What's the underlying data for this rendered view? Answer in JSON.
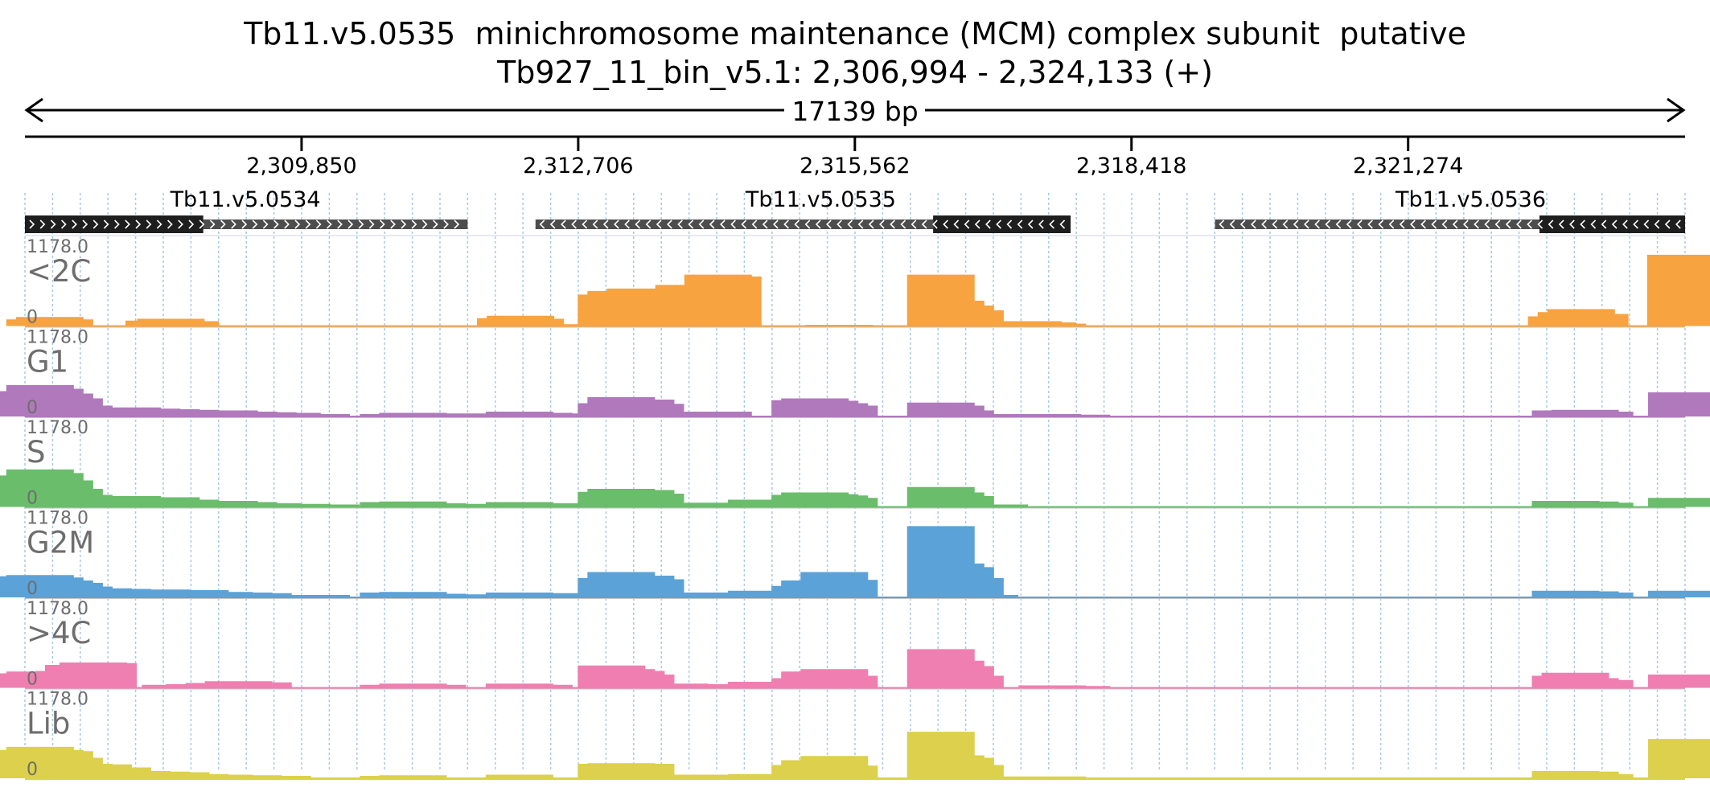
{
  "header": {
    "title": "Tb11.v5.0535  minichromosome maintenance (MCM) complex subunit  putative",
    "locus": "Tb927_11_bin_v5.1: 2,306,994 - 2,324,133 (+)"
  },
  "ruler": {
    "span_label": "17139 bp",
    "start": 2306994,
    "end": 2324133,
    "ticks": [
      {
        "pos": 2309850,
        "label": "2,309,850"
      },
      {
        "pos": 2312706,
        "label": "2,312,706"
      },
      {
        "pos": 2315562,
        "label": "2,315,562"
      },
      {
        "pos": 2318418,
        "label": "2,318,418"
      },
      {
        "pos": 2321274,
        "label": "2,321,274"
      }
    ]
  },
  "genes": [
    {
      "name": "Tb11.v5.0534",
      "strand": "+",
      "start": 2306994,
      "end": 2311564,
      "utr_start": 2308835,
      "utr_end": 2311564,
      "label_pos": 2309270
    },
    {
      "name": "Tb11.v5.0535",
      "strand": "-",
      "start": 2312265,
      "end": 2317790,
      "utr_start": 2312265,
      "utr_end": 2316370,
      "label_pos": 2315210
    },
    {
      "name": "Tb11.v5.0536",
      "strand": "-",
      "start": 2319280,
      "end": 2324133,
      "utr_start": 2319280,
      "utr_end": 2322630,
      "label_pos": 2321920
    }
  ],
  "tracks": {
    "ymax_label": "1178.0",
    "ymin_label": "0",
    "items": [
      {
        "name": "<2C",
        "color": "#f6a340"
      },
      {
        "name": "G1",
        "color": "#b079bc"
      },
      {
        "name": "S",
        "color": "#6abd6a"
      },
      {
        "name": "G2M",
        "color": "#5ba2d8"
      },
      {
        "name": ">4C",
        "color": "#ef7fb1"
      },
      {
        "name": "Lib",
        "color": "#dcd04c"
      }
    ]
  },
  "chart_data": {
    "type": "area",
    "x_unit": "bp",
    "xlim": [
      2306994,
      2324133
    ],
    "ylim": [
      0,
      1178.0
    ],
    "series": [
      {
        "name": "<2C",
        "points": [
          [
            2307150,
            110
          ],
          [
            2307250,
            150
          ],
          [
            2307350,
            110
          ],
          [
            2308380,
            90
          ],
          [
            2308500,
            120
          ],
          [
            2308650,
            80
          ],
          [
            2312010,
            130
          ],
          [
            2312110,
            170
          ],
          [
            2312210,
            120
          ],
          [
            2312480,
            20
          ],
          [
            2312680,
            30
          ],
          [
            2313050,
            520
          ],
          [
            2313150,
            580
          ],
          [
            2313250,
            500
          ],
          [
            2313350,
            620
          ],
          [
            2313450,
            560
          ],
          [
            2313650,
            200
          ],
          [
            2313750,
            600
          ],
          [
            2313850,
            680
          ],
          [
            2313950,
            620
          ],
          [
            2314050,
            500
          ],
          [
            2314150,
            850
          ],
          [
            2314250,
            820
          ],
          [
            2315400,
            20
          ],
          [
            2316450,
            850
          ],
          [
            2316550,
            420
          ],
          [
            2316650,
            340
          ],
          [
            2316750,
            260
          ],
          [
            2317350,
            80
          ],
          [
            2317500,
            60
          ],
          [
            2317600,
            40
          ],
          [
            2322860,
            160
          ],
          [
            2322960,
            230
          ],
          [
            2323060,
            280
          ],
          [
            2323200,
            200
          ],
          [
            2324090,
            1180
          ]
        ]
      },
      {
        "name": "G1",
        "points": [
          [
            2307050,
            420
          ],
          [
            2307150,
            520
          ],
          [
            2307250,
            460
          ],
          [
            2307350,
            380
          ],
          [
            2307450,
            300
          ],
          [
            2307550,
            180
          ],
          [
            2307700,
            150
          ],
          [
            2307850,
            120
          ],
          [
            2308050,
            150
          ],
          [
            2308250,
            130
          ],
          [
            2308450,
            120
          ],
          [
            2308650,
            110
          ],
          [
            2308850,
            90
          ],
          [
            2309050,
            100
          ],
          [
            2309250,
            80
          ],
          [
            2309450,
            70
          ],
          [
            2309700,
            60
          ],
          [
            2310000,
            40
          ],
          [
            2310800,
            40
          ],
          [
            2311000,
            60
          ],
          [
            2311300,
            40
          ],
          [
            2311600,
            50
          ],
          [
            2312100,
            80
          ],
          [
            2312300,
            60
          ],
          [
            2312600,
            50
          ],
          [
            2313050,
            220
          ],
          [
            2313150,
            320
          ],
          [
            2313250,
            250
          ],
          [
            2313350,
            280
          ],
          [
            2313450,
            210
          ],
          [
            2313700,
            60
          ],
          [
            2313900,
            70
          ],
          [
            2314150,
            80
          ],
          [
            2315050,
            270
          ],
          [
            2315150,
            300
          ],
          [
            2315250,
            260
          ],
          [
            2315350,
            220
          ],
          [
            2315450,
            180
          ],
          [
            2316450,
            230
          ],
          [
            2316550,
            180
          ],
          [
            2316650,
            100
          ],
          [
            2317150,
            40
          ],
          [
            2317550,
            40
          ],
          [
            2317850,
            30
          ],
          [
            2322900,
            100
          ],
          [
            2323100,
            110
          ],
          [
            2323250,
            80
          ],
          [
            2324100,
            400
          ]
        ]
      },
      {
        "name": "S",
        "points": [
          [
            2307050,
            520
          ],
          [
            2307150,
            620
          ],
          [
            2307250,
            560
          ],
          [
            2307350,
            440
          ],
          [
            2307450,
            300
          ],
          [
            2307550,
            200
          ],
          [
            2307700,
            130
          ],
          [
            2307850,
            170
          ],
          [
            2308050,
            180
          ],
          [
            2308250,
            140
          ],
          [
            2308450,
            160
          ],
          [
            2308650,
            120
          ],
          [
            2308850,
            90
          ],
          [
            2309050,
            100
          ],
          [
            2309250,
            80
          ],
          [
            2309500,
            60
          ],
          [
            2309800,
            50
          ],
          [
            2310100,
            40
          ],
          [
            2310800,
            80
          ],
          [
            2311000,
            90
          ],
          [
            2311200,
            60
          ],
          [
            2311500,
            50
          ],
          [
            2312100,
            80
          ],
          [
            2312300,
            60
          ],
          [
            2312600,
            60
          ],
          [
            2313050,
            250
          ],
          [
            2313150,
            300
          ],
          [
            2313250,
            260
          ],
          [
            2313350,
            280
          ],
          [
            2313450,
            220
          ],
          [
            2313700,
            60
          ],
          [
            2313900,
            60
          ],
          [
            2314150,
            70
          ],
          [
            2314300,
            50
          ],
          [
            2314600,
            120
          ],
          [
            2314800,
            110
          ],
          [
            2315050,
            200
          ],
          [
            2315150,
            240
          ],
          [
            2315250,
            210
          ],
          [
            2315350,
            190
          ],
          [
            2315450,
            150
          ],
          [
            2316450,
            330
          ],
          [
            2316550,
            240
          ],
          [
            2316650,
            180
          ],
          [
            2317000,
            40
          ],
          [
            2322900,
            100
          ],
          [
            2323100,
            90
          ],
          [
            2323250,
            70
          ],
          [
            2324100,
            150
          ]
        ]
      },
      {
        "name": "G2M",
        "points": [
          [
            2307050,
            350
          ],
          [
            2307150,
            370
          ],
          [
            2307250,
            330
          ],
          [
            2307350,
            280
          ],
          [
            2307450,
            240
          ],
          [
            2307550,
            180
          ],
          [
            2307750,
            150
          ],
          [
            2307950,
            140
          ],
          [
            2308150,
            120
          ],
          [
            2308350,
            130
          ],
          [
            2308550,
            110
          ],
          [
            2308750,
            120
          ],
          [
            2309000,
            90
          ],
          [
            2309200,
            80
          ],
          [
            2309400,
            70
          ],
          [
            2310000,
            40
          ],
          [
            2310800,
            80
          ],
          [
            2311000,
            90
          ],
          [
            2311200,
            60
          ],
          [
            2311500,
            50
          ],
          [
            2312100,
            80
          ],
          [
            2312300,
            60
          ],
          [
            2312500,
            70
          ],
          [
            2313050,
            320
          ],
          [
            2313150,
            420
          ],
          [
            2313250,
            330
          ],
          [
            2313350,
            360
          ],
          [
            2313450,
            300
          ],
          [
            2313700,
            80
          ],
          [
            2313900,
            80
          ],
          [
            2314150,
            80
          ],
          [
            2314600,
            110
          ],
          [
            2314800,
            100
          ],
          [
            2315050,
            190
          ],
          [
            2315150,
            280
          ],
          [
            2315250,
            250
          ],
          [
            2315350,
            420
          ],
          [
            2315450,
            290
          ],
          [
            2316450,
            1180
          ],
          [
            2316550,
            560
          ],
          [
            2316650,
            500
          ],
          [
            2316750,
            320
          ],
          [
            2316900,
            40
          ],
          [
            2322900,
            110
          ],
          [
            2323100,
            100
          ],
          [
            2323250,
            80
          ],
          [
            2324100,
            110
          ]
        ]
      },
      {
        "name": ">4C",
        "points": [
          [
            2307050,
            240
          ],
          [
            2307150,
            270
          ],
          [
            2307250,
            230
          ],
          [
            2307350,
            240
          ],
          [
            2307450,
            280
          ],
          [
            2307550,
            380
          ],
          [
            2307700,
            420
          ],
          [
            2307800,
            410
          ],
          [
            2308550,
            50
          ],
          [
            2308800,
            60
          ],
          [
            2309000,
            80
          ],
          [
            2309200,
            110
          ],
          [
            2309400,
            90
          ],
          [
            2310800,
            50
          ],
          [
            2311000,
            70
          ],
          [
            2311200,
            50
          ],
          [
            2312100,
            70
          ],
          [
            2312300,
            50
          ],
          [
            2313050,
            370
          ],
          [
            2313150,
            310
          ],
          [
            2313250,
            280
          ],
          [
            2313350,
            220
          ],
          [
            2313700,
            70
          ],
          [
            2313900,
            60
          ],
          [
            2314150,
            60
          ],
          [
            2314600,
            100
          ],
          [
            2314800,
            90
          ],
          [
            2315050,
            160
          ],
          [
            2315150,
            270
          ],
          [
            2315250,
            230
          ],
          [
            2315350,
            310
          ],
          [
            2315450,
            200
          ],
          [
            2316450,
            640
          ],
          [
            2316550,
            450
          ],
          [
            2316650,
            360
          ],
          [
            2316750,
            200
          ],
          [
            2317600,
            40
          ],
          [
            2317850,
            30
          ],
          [
            2322900,
            200
          ],
          [
            2323000,
            250
          ],
          [
            2323100,
            160
          ],
          [
            2323250,
            130
          ],
          [
            2324100,
            220
          ]
        ]
      },
      {
        "name": "Lib",
        "points": [
          [
            2307050,
            470
          ],
          [
            2307150,
            520
          ],
          [
            2307250,
            470
          ],
          [
            2307350,
            450
          ],
          [
            2307450,
            340
          ],
          [
            2307550,
            240
          ],
          [
            2307750,
            230
          ],
          [
            2307950,
            180
          ],
          [
            2308150,
            120
          ],
          [
            2308350,
            110
          ],
          [
            2308550,
            100
          ],
          [
            2308750,
            70
          ],
          [
            2309000,
            60
          ],
          [
            2309300,
            50
          ],
          [
            2309600,
            40
          ],
          [
            2310800,
            40
          ],
          [
            2311000,
            50
          ],
          [
            2312100,
            60
          ],
          [
            2313050,
            240
          ],
          [
            2313150,
            250
          ],
          [
            2313250,
            200
          ],
          [
            2313350,
            240
          ],
          [
            2313700,
            60
          ],
          [
            2313900,
            60
          ],
          [
            2314150,
            50
          ],
          [
            2314600,
            70
          ],
          [
            2314800,
            60
          ],
          [
            2315050,
            220
          ],
          [
            2315150,
            300
          ],
          [
            2315250,
            280
          ],
          [
            2315350,
            370
          ],
          [
            2315450,
            210
          ],
          [
            2316450,
            770
          ],
          [
            2316550,
            380
          ],
          [
            2316650,
            340
          ],
          [
            2316750,
            220
          ],
          [
            2317300,
            30
          ],
          [
            2317600,
            30
          ],
          [
            2322900,
            120
          ],
          [
            2323100,
            110
          ],
          [
            2323250,
            70
          ],
          [
            2324100,
            650
          ]
        ]
      }
    ]
  }
}
